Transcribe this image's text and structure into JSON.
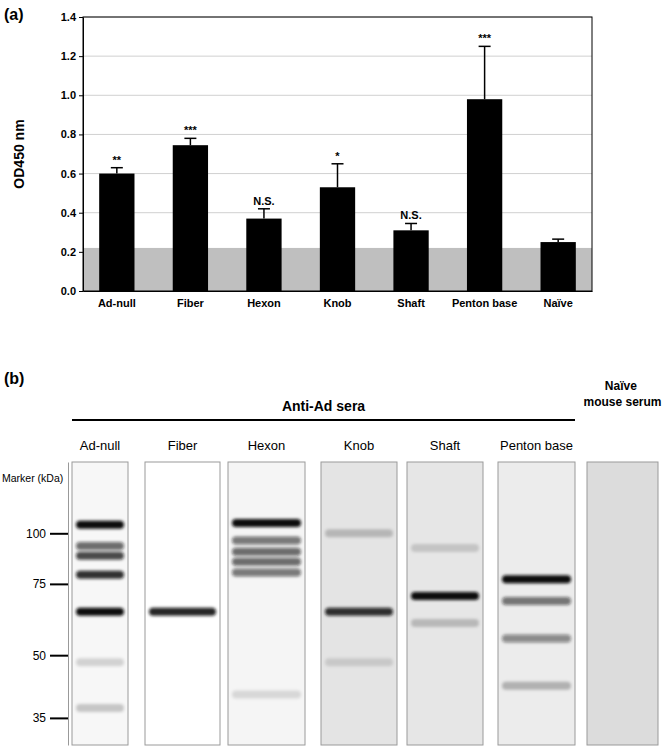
{
  "chart_data": [
    {
      "type": "bar",
      "title": "(a)",
      "y_label": "OD450 nm",
      "categories": [
        "Ad-null",
        "Fiber",
        "Hexon",
        "Knob",
        "Shaft",
        "Penton base",
        "Naïve"
      ],
      "values": [
        0.6,
        0.745,
        0.37,
        0.53,
        0.31,
        0.98,
        0.25
      ],
      "errors": [
        0.03,
        0.035,
        0.05,
        0.12,
        0.035,
        0.27,
        0.015
      ],
      "annotations": [
        "**",
        "***",
        "N.S.",
        "*",
        "N.S.",
        "***",
        null
      ],
      "color": "#000000",
      "ylim": [
        0,
        1.4
      ],
      "yticks": [
        {
          "value": 0,
          "label": "0.0"
        },
        {
          "value": 0.2,
          "label": "0.2"
        },
        {
          "value": 0.4,
          "label": "0.4"
        },
        {
          "value": 0.6,
          "label": "0.6"
        },
        {
          "value": 0.8,
          "label": "0.8"
        },
        {
          "value": 1.0,
          "label": "1.0"
        },
        {
          "value": 1.2,
          "label": "1.2"
        },
        {
          "value": 1.4,
          "label": "1.4"
        }
      ],
      "grid": true,
      "shaded_band": [
        0,
        0.22
      ]
    },
    {
      "type": "western_blot",
      "title": "(b)",
      "y_label": "Marker (kDa)",
      "log": "y",
      "ylim": [
        150,
        30
      ],
      "yticks": [
        100,
        75,
        50,
        35
      ],
      "groups": [
        {
          "label": "Anti-Ad sera",
          "lanes": [
            {
              "name": "Ad-null",
              "color": "#f7f7f7",
              "bands": [
                105,
                93,
                88,
                79,
                64,
                48,
                37
              ],
              "band_intensity": [
                1,
                0.6,
                0.75,
                0.85,
                1,
                0.15,
                0.2
              ]
            },
            {
              "name": "Fiber",
              "color": "#ffffff",
              "bands": [
                64
              ],
              "band_intensity": [
                0.9
              ]
            },
            {
              "name": "Hexon",
              "color": "#f5f5f5",
              "bands": [
                106,
                96,
                90,
                85,
                80,
                40
              ],
              "band_intensity": [
                1,
                0.55,
                0.6,
                0.6,
                0.55,
                0.12
              ]
            },
            {
              "name": "Knob",
              "color": "#e4e4e4",
              "bands": [
                100,
                64,
                48
              ],
              "band_intensity": [
                0.2,
                0.85,
                0.12
              ]
            },
            {
              "name": "Shaft",
              "color": "#e6e6e6",
              "bands": [
                92,
                70,
                60
              ],
              "band_intensity": [
                0.15,
                1,
                0.2
              ]
            },
            {
              "name": "Penton base",
              "color": "#ececec",
              "bands": [
                77,
                68,
                55,
                42
              ],
              "band_intensity": [
                1,
                0.55,
                0.45,
                0.25
              ]
            }
          ]
        },
        {
          "lanes": [
            {
              "name": "Naïve mouse serum",
              "color": "#dcdcdc",
              "bands": [],
              "band_intensity": []
            }
          ]
        }
      ]
    }
  ]
}
